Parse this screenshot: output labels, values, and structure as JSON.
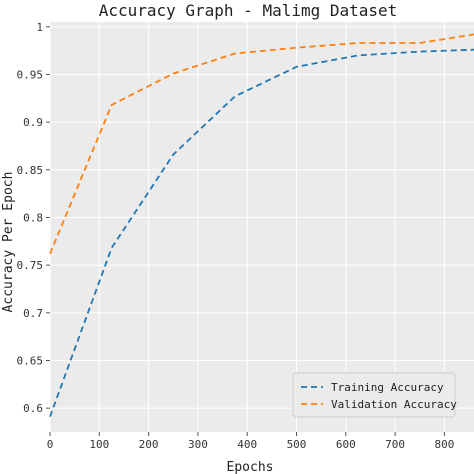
{
  "chart_data": {
    "type": "line",
    "title": "Accuracy Graph - Malimg Dataset",
    "xlabel": "Epochs",
    "ylabel": "Accuracy Per Epoch",
    "xlim": [
      0,
      860
    ],
    "ylim": [
      0.575,
      1.005
    ],
    "xticks": [
      0,
      100,
      200,
      300,
      400,
      500,
      600,
      700,
      800
    ],
    "yticks": [
      0.6,
      0.65,
      0.7,
      0.75,
      0.8,
      0.85,
      0.9,
      0.95,
      1
    ],
    "ytick_labels": [
      "0.6",
      "0.65",
      "0.7",
      "0.75",
      "0.8",
      "0.85",
      "0.9",
      "0.95",
      "1"
    ],
    "grid": true,
    "legend_position": "bottom-right",
    "background_color": "#ebebeb",
    "series": [
      {
        "name": "Training Accuracy",
        "color": "#1f77b4",
        "x": [
          0,
          125,
          250,
          375,
          500,
          625,
          750,
          860
        ],
        "y": [
          0.591,
          0.768,
          0.866,
          0.927,
          0.958,
          0.97,
          0.974,
          0.976
        ]
      },
      {
        "name": "Validation Accuracy",
        "color": "#ff7f0e",
        "x": [
          0,
          125,
          250,
          375,
          500,
          625,
          750,
          860
        ],
        "y": [
          0.762,
          0.918,
          0.951,
          0.972,
          0.978,
          0.983,
          0.983,
          0.992
        ]
      }
    ]
  }
}
